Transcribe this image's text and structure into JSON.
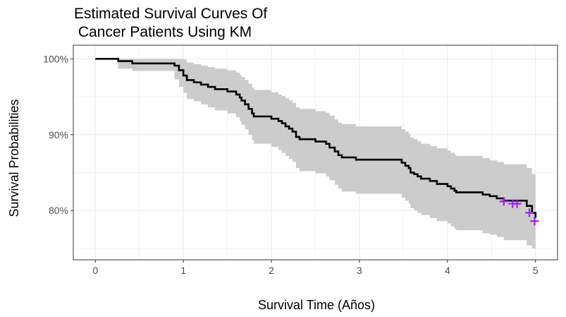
{
  "chart_data": {
    "type": "line",
    "title_lines": [
      "Estimated Survival Curves Of",
      " Cancer Patients Using KM"
    ],
    "xlabel": "Survival Time (Años)",
    "ylabel": "Survival Probabilities",
    "xlim": [
      -0.25,
      5.25
    ],
    "ylim": [
      73.5,
      101.8
    ],
    "x_ticks": [
      0,
      1,
      2,
      3,
      4,
      5
    ],
    "x_tick_labels": [
      "0",
      "1",
      "2",
      "3",
      "4",
      "5"
    ],
    "y_ticks": [
      80,
      90,
      100
    ],
    "y_tick_labels": [
      "80%",
      "90%",
      "100%"
    ],
    "grid": true,
    "colors": {
      "curve": "#000000",
      "confidence_band": "#cccccc",
      "censor_marks": "#a020f0",
      "grid": "#ebebeb",
      "panel_border": "#333333"
    },
    "series": [
      {
        "type": "step",
        "points": [
          [
            0,
            100
          ],
          [
            0.26,
            99.7
          ],
          [
            0.42,
            99.4
          ],
          [
            0.9,
            99.1
          ],
          [
            0.95,
            98.5
          ],
          [
            1.0,
            97.8
          ],
          [
            1.04,
            97.2
          ],
          [
            1.12,
            96.9
          ],
          [
            1.2,
            96.6
          ],
          [
            1.28,
            96.3
          ],
          [
            1.36,
            96.0
          ],
          [
            1.5,
            95.7
          ],
          [
            1.6,
            95.3
          ],
          [
            1.64,
            94.9
          ],
          [
            1.66,
            94.5
          ],
          [
            1.7,
            94.0
          ],
          [
            1.74,
            93.4
          ],
          [
            1.78,
            92.8
          ],
          [
            1.8,
            92.4
          ],
          [
            2.0,
            92.1
          ],
          [
            2.08,
            91.8
          ],
          [
            2.12,
            91.5
          ],
          [
            2.16,
            91.1
          ],
          [
            2.2,
            90.8
          ],
          [
            2.24,
            90.4
          ],
          [
            2.28,
            89.7
          ],
          [
            2.32,
            89.4
          ],
          [
            2.5,
            89.1
          ],
          [
            2.62,
            88.8
          ],
          [
            2.66,
            88.3
          ],
          [
            2.72,
            87.8
          ],
          [
            2.76,
            87.3
          ],
          [
            2.8,
            87.0
          ],
          [
            2.96,
            86.7
          ],
          [
            3.08,
            86.7
          ],
          [
            3.48,
            86.3
          ],
          [
            3.52,
            85.9
          ],
          [
            3.56,
            85.6
          ],
          [
            3.58,
            85.0
          ],
          [
            3.62,
            84.8
          ],
          [
            3.66,
            84.5
          ],
          [
            3.7,
            84.2
          ],
          [
            3.72,
            84.2
          ],
          [
            3.8,
            83.9
          ],
          [
            3.88,
            83.5
          ],
          [
            4.0,
            83.2
          ],
          [
            4.04,
            82.9
          ],
          [
            4.08,
            82.6
          ],
          [
            4.1,
            82.4
          ],
          [
            4.4,
            82.1
          ],
          [
            4.48,
            81.9
          ],
          [
            4.56,
            81.6
          ],
          [
            4.64,
            81.3
          ],
          [
            4.9,
            80.6
          ],
          [
            4.96,
            79.7
          ],
          [
            5.0,
            79.0
          ]
        ],
        "lower": [
          [
            0,
            100
          ],
          [
            0.26,
            98.7
          ],
          [
            0.42,
            98.4
          ],
          [
            0.9,
            97.3
          ],
          [
            0.95,
            96.3
          ],
          [
            1.0,
            95.5
          ],
          [
            1.04,
            94.7
          ],
          [
            1.12,
            94.4
          ],
          [
            1.2,
            94.0
          ],
          [
            1.28,
            93.6
          ],
          [
            1.36,
            93.2
          ],
          [
            1.5,
            92.8
          ],
          [
            1.6,
            92.3
          ],
          [
            1.64,
            91.8
          ],
          [
            1.66,
            91.3
          ],
          [
            1.7,
            90.7
          ],
          [
            1.74,
            90.0
          ],
          [
            1.78,
            89.3
          ],
          [
            1.8,
            88.8
          ],
          [
            2.0,
            88.4
          ],
          [
            2.08,
            88.0
          ],
          [
            2.12,
            87.6
          ],
          [
            2.16,
            87.2
          ],
          [
            2.2,
            86.8
          ],
          [
            2.24,
            86.4
          ],
          [
            2.28,
            85.6
          ],
          [
            2.32,
            85.2
          ],
          [
            2.5,
            84.9
          ],
          [
            2.62,
            84.5
          ],
          [
            2.66,
            84.0
          ],
          [
            2.72,
            83.4
          ],
          [
            2.76,
            82.9
          ],
          [
            2.8,
            82.5
          ],
          [
            2.96,
            82.2
          ],
          [
            3.08,
            82.2
          ],
          [
            3.48,
            81.7
          ],
          [
            3.52,
            81.3
          ],
          [
            3.56,
            80.9
          ],
          [
            3.58,
            80.3
          ],
          [
            3.62,
            80.0
          ],
          [
            3.66,
            79.7
          ],
          [
            3.7,
            79.4
          ],
          [
            3.72,
            79.4
          ],
          [
            3.8,
            79.0
          ],
          [
            3.88,
            78.6
          ],
          [
            4.0,
            78.3
          ],
          [
            4.04,
            77.9
          ],
          [
            4.08,
            77.6
          ],
          [
            4.1,
            77.4
          ],
          [
            4.4,
            77.0
          ],
          [
            4.48,
            76.8
          ],
          [
            4.56,
            76.5
          ],
          [
            4.64,
            76.1
          ],
          [
            4.9,
            75.4
          ],
          [
            4.96,
            75.0
          ],
          [
            5.0,
            74.4
          ]
        ],
        "upper": [
          [
            0,
            100
          ],
          [
            0.26,
            100
          ],
          [
            0.42,
            100
          ],
          [
            0.9,
            100
          ],
          [
            0.95,
            100
          ],
          [
            1.0,
            99.9
          ],
          [
            1.04,
            99.5
          ],
          [
            1.12,
            99.3
          ],
          [
            1.2,
            99.1
          ],
          [
            1.28,
            98.9
          ],
          [
            1.36,
            98.7
          ],
          [
            1.5,
            98.5
          ],
          [
            1.6,
            98.2
          ],
          [
            1.64,
            97.9
          ],
          [
            1.66,
            97.6
          ],
          [
            1.7,
            97.2
          ],
          [
            1.74,
            96.7
          ],
          [
            1.78,
            96.2
          ],
          [
            1.8,
            95.9
          ],
          [
            2.0,
            95.6
          ],
          [
            2.08,
            95.3
          ],
          [
            2.12,
            95.1
          ],
          [
            2.16,
            94.8
          ],
          [
            2.2,
            94.5
          ],
          [
            2.24,
            94.2
          ],
          [
            2.28,
            93.6
          ],
          [
            2.32,
            93.4
          ],
          [
            2.5,
            93.1
          ],
          [
            2.62,
            92.9
          ],
          [
            2.66,
            92.5
          ],
          [
            2.72,
            92.0
          ],
          [
            2.76,
            91.6
          ],
          [
            2.8,
            91.4
          ],
          [
            2.96,
            91.1
          ],
          [
            3.08,
            91.1
          ],
          [
            3.48,
            90.7
          ],
          [
            3.52,
            90.4
          ],
          [
            3.56,
            90.1
          ],
          [
            3.58,
            89.6
          ],
          [
            3.62,
            89.4
          ],
          [
            3.66,
            89.1
          ],
          [
            3.7,
            88.8
          ],
          [
            3.72,
            88.8
          ],
          [
            3.8,
            88.5
          ],
          [
            3.88,
            88.2
          ],
          [
            4.0,
            87.9
          ],
          [
            4.04,
            87.6
          ],
          [
            4.08,
            87.4
          ],
          [
            4.1,
            87.2
          ],
          [
            4.4,
            86.9
          ],
          [
            4.48,
            86.6
          ],
          [
            4.56,
            86.4
          ],
          [
            4.64,
            86.1
          ],
          [
            4.9,
            85.6
          ],
          [
            4.96,
            84.8
          ],
          [
            5.0,
            83.0
          ]
        ],
        "censored": [
          [
            4.64,
            81.2
          ],
          [
            4.74,
            80.9
          ],
          [
            4.79,
            80.9
          ],
          [
            4.93,
            79.7
          ],
          [
            4.99,
            78.6
          ]
        ]
      }
    ]
  }
}
